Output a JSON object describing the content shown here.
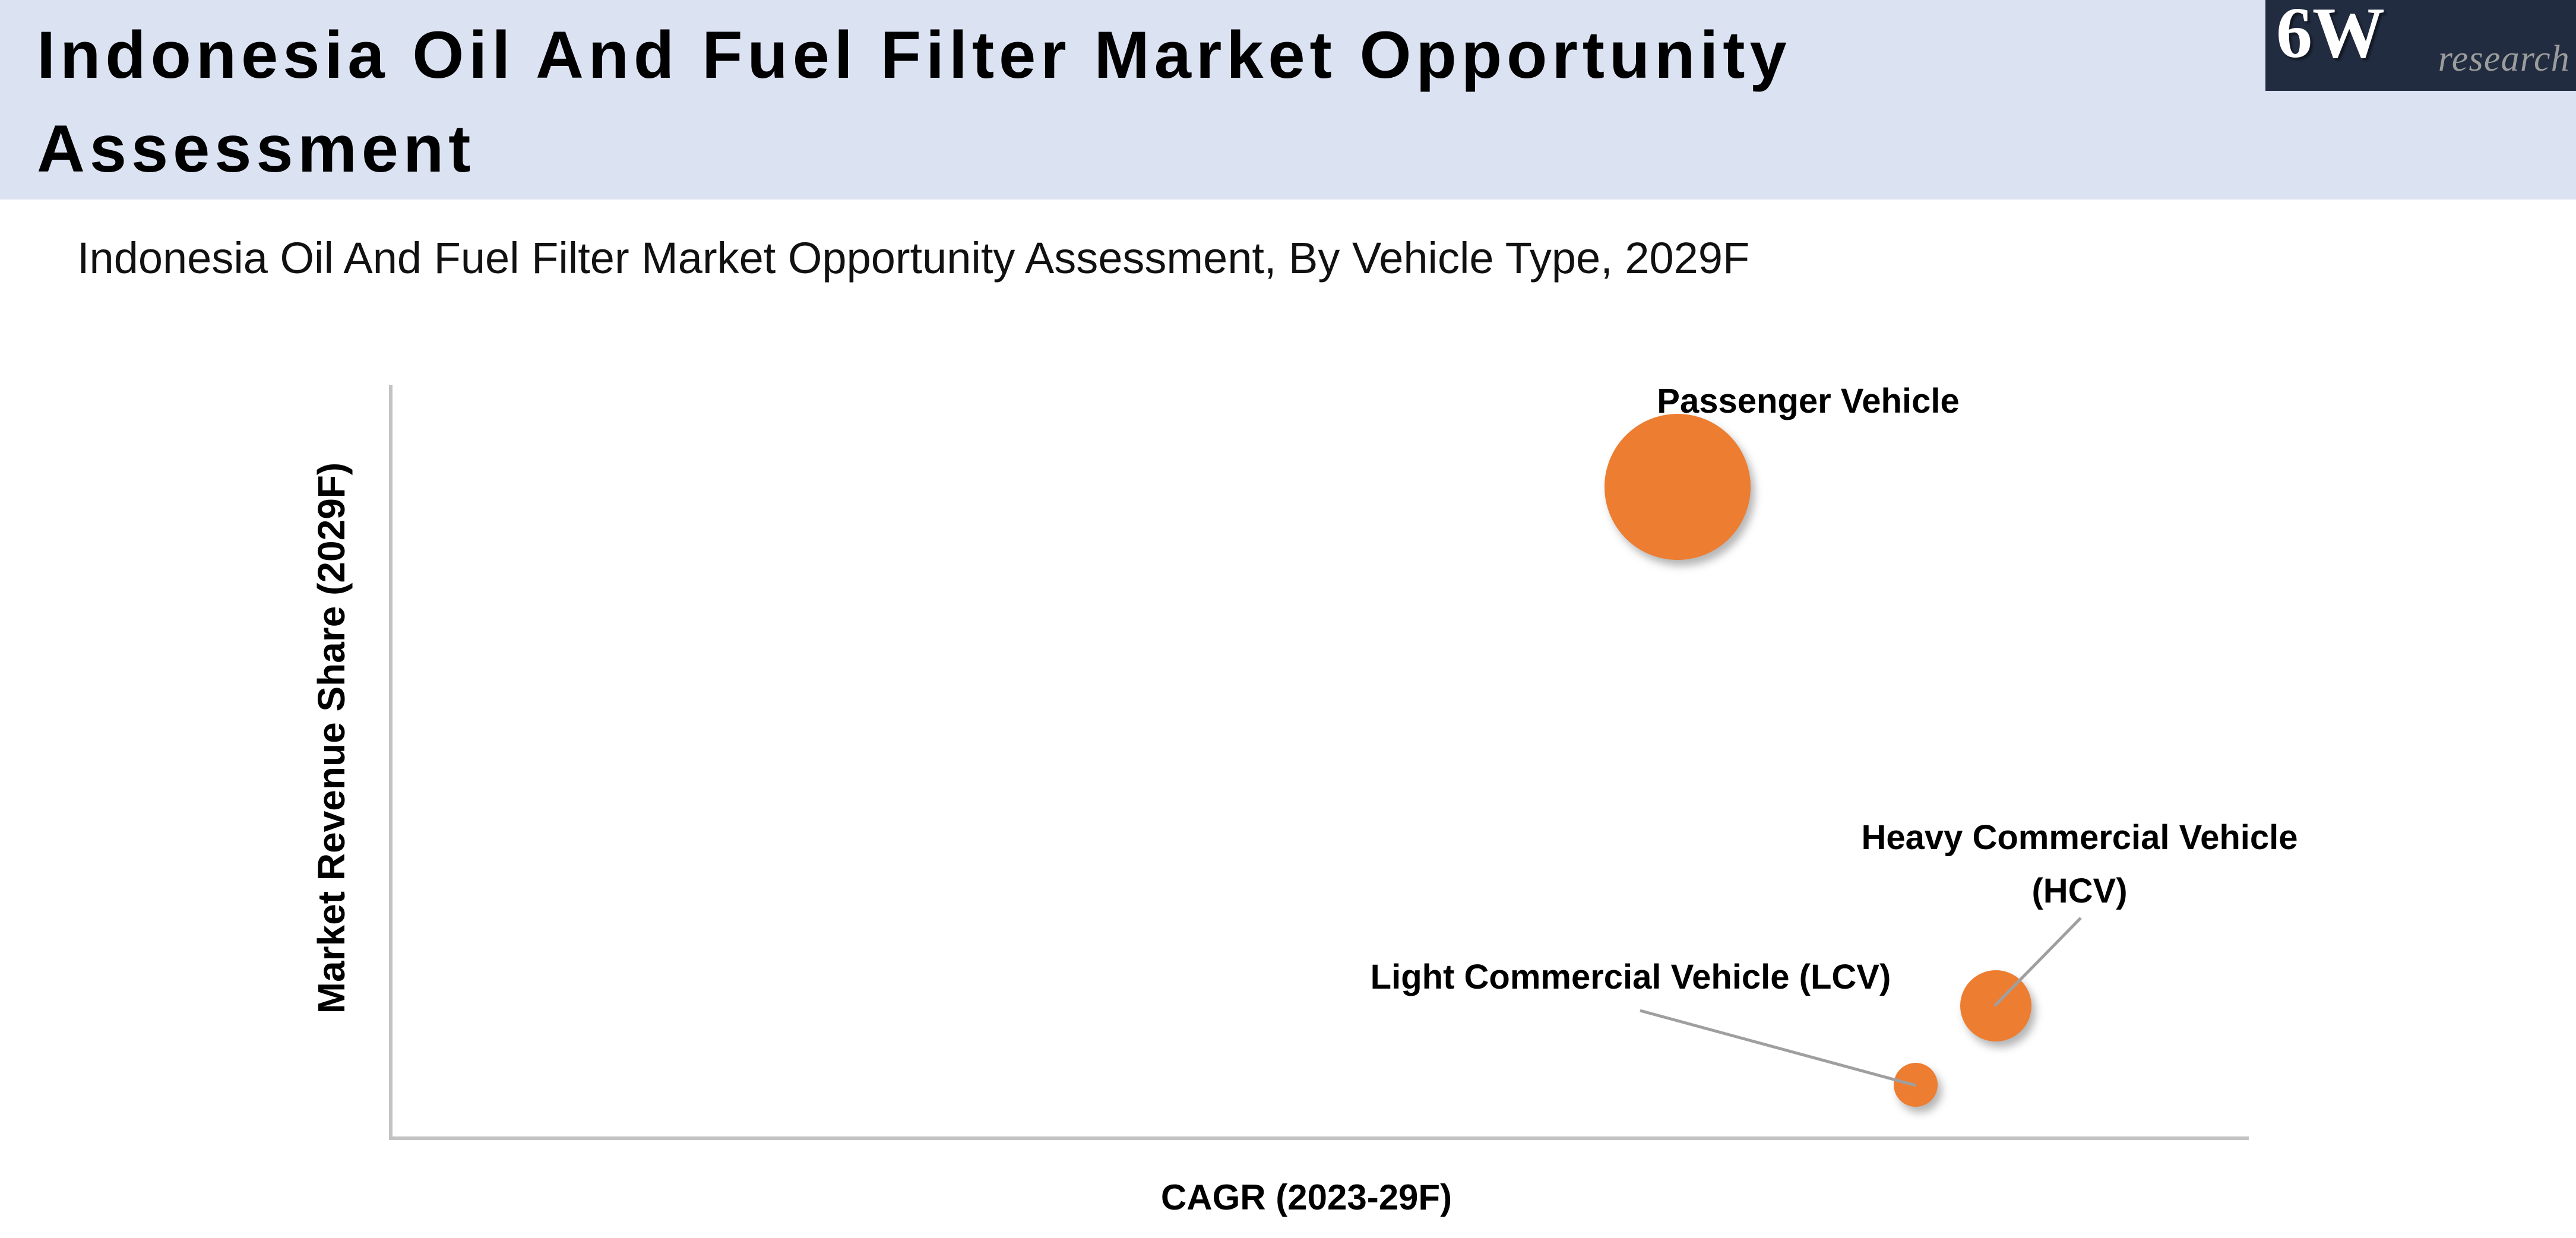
{
  "header": {
    "title_lines": [
      "Indonesia Oil And Fuel Filter Market Opportunity",
      "Assessment"
    ],
    "logo": {
      "brand": "6W",
      "brand_suffix": "research"
    }
  },
  "colors": {
    "header_band": "#dbe2f2",
    "logo_background": "#212c40",
    "logo_suffix_gray": "#9c9c9c",
    "bubble_orange": "#ED7D31",
    "axis_gray": "#c3c3c3",
    "leader_gray": "#9f9f9f"
  },
  "chart_data": {
    "type": "scatter",
    "subtype": "bubble",
    "title": "Indonesia Oil And Fuel Filter Market Opportunity Assessment, By Vehicle Type, 2029F",
    "xlabel": "CAGR (2023-29F)",
    "ylabel": "Market Revenue Share (2029F)",
    "axis_ticks_visible": false,
    "gridlines": false,
    "legend": false,
    "x_range_rel": [
      0,
      1
    ],
    "y_range_rel": [
      0,
      1
    ],
    "series_color": "#ED7D31",
    "points": [
      {
        "label": "Passenger Vehicle",
        "x_rel": 0.693,
        "y_rel": 0.864,
        "radius_px": 123
      },
      {
        "label": "Heavy Commercial Vehicle (HCV)",
        "x_rel": 0.864,
        "y_rel": 0.174,
        "radius_px": 60
      },
      {
        "label": "Light Commercial Vehicle (LCV)",
        "x_rel": 0.821,
        "y_rel": 0.069,
        "radius_px": 37
      }
    ]
  }
}
